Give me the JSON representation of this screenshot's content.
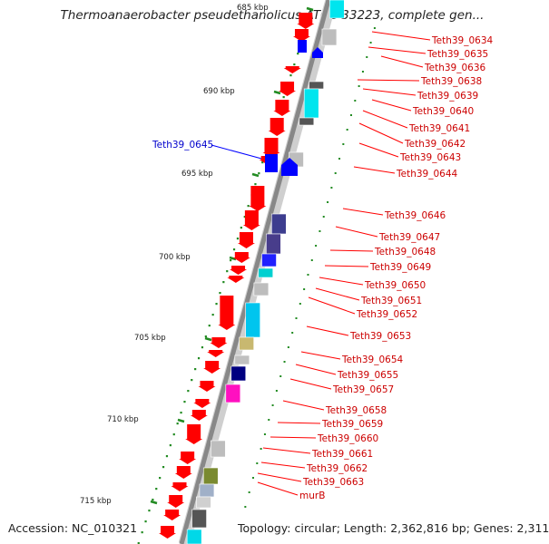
{
  "title": "Thermoanaerobacter pseudethanolicus ATCC 33223, complete gen...",
  "footer": {
    "accession": "Accession: NC_010321",
    "topology": "Topology: circular; Length: 2,362,816 bp; Genes: 2,311"
  },
  "scale_labels": [
    "685 kbp",
    "690 kbp",
    "695 kbp",
    "700 kbp",
    "705 kbp",
    "710 kbp",
    "715 kbp"
  ],
  "highlighted_gene": "Teth39_0645",
  "gene_labels": [
    "Teth39_0634",
    "Teth39_0635",
    "Teth39_0636",
    "Teth39_0638",
    "Teth39_0639",
    "Teth39_0640",
    "Teth39_0641",
    "Teth39_0642",
    "Teth39_0643",
    "Teth39_0644",
    "Teth39_0646",
    "Teth39_0647",
    "Teth39_0648",
    "Teth39_0649",
    "Teth39_0650",
    "Teth39_0651",
    "Teth39_0652",
    "Teth39_0653",
    "Teth39_0654",
    "Teth39_0655",
    "Teth39_0657",
    "Teth39_0658",
    "Teth39_0659",
    "Teth39_0660",
    "Teth39_0661",
    "Teth39_0662",
    "Teth39_0663",
    "murB"
  ],
  "colors": {
    "gene_strand": "#ff0000",
    "highlight": "#0000ff",
    "label": "#cc0000",
    "highlight_label": "#0000cc",
    "backbone": "#888888",
    "dots": "#228b22"
  }
}
